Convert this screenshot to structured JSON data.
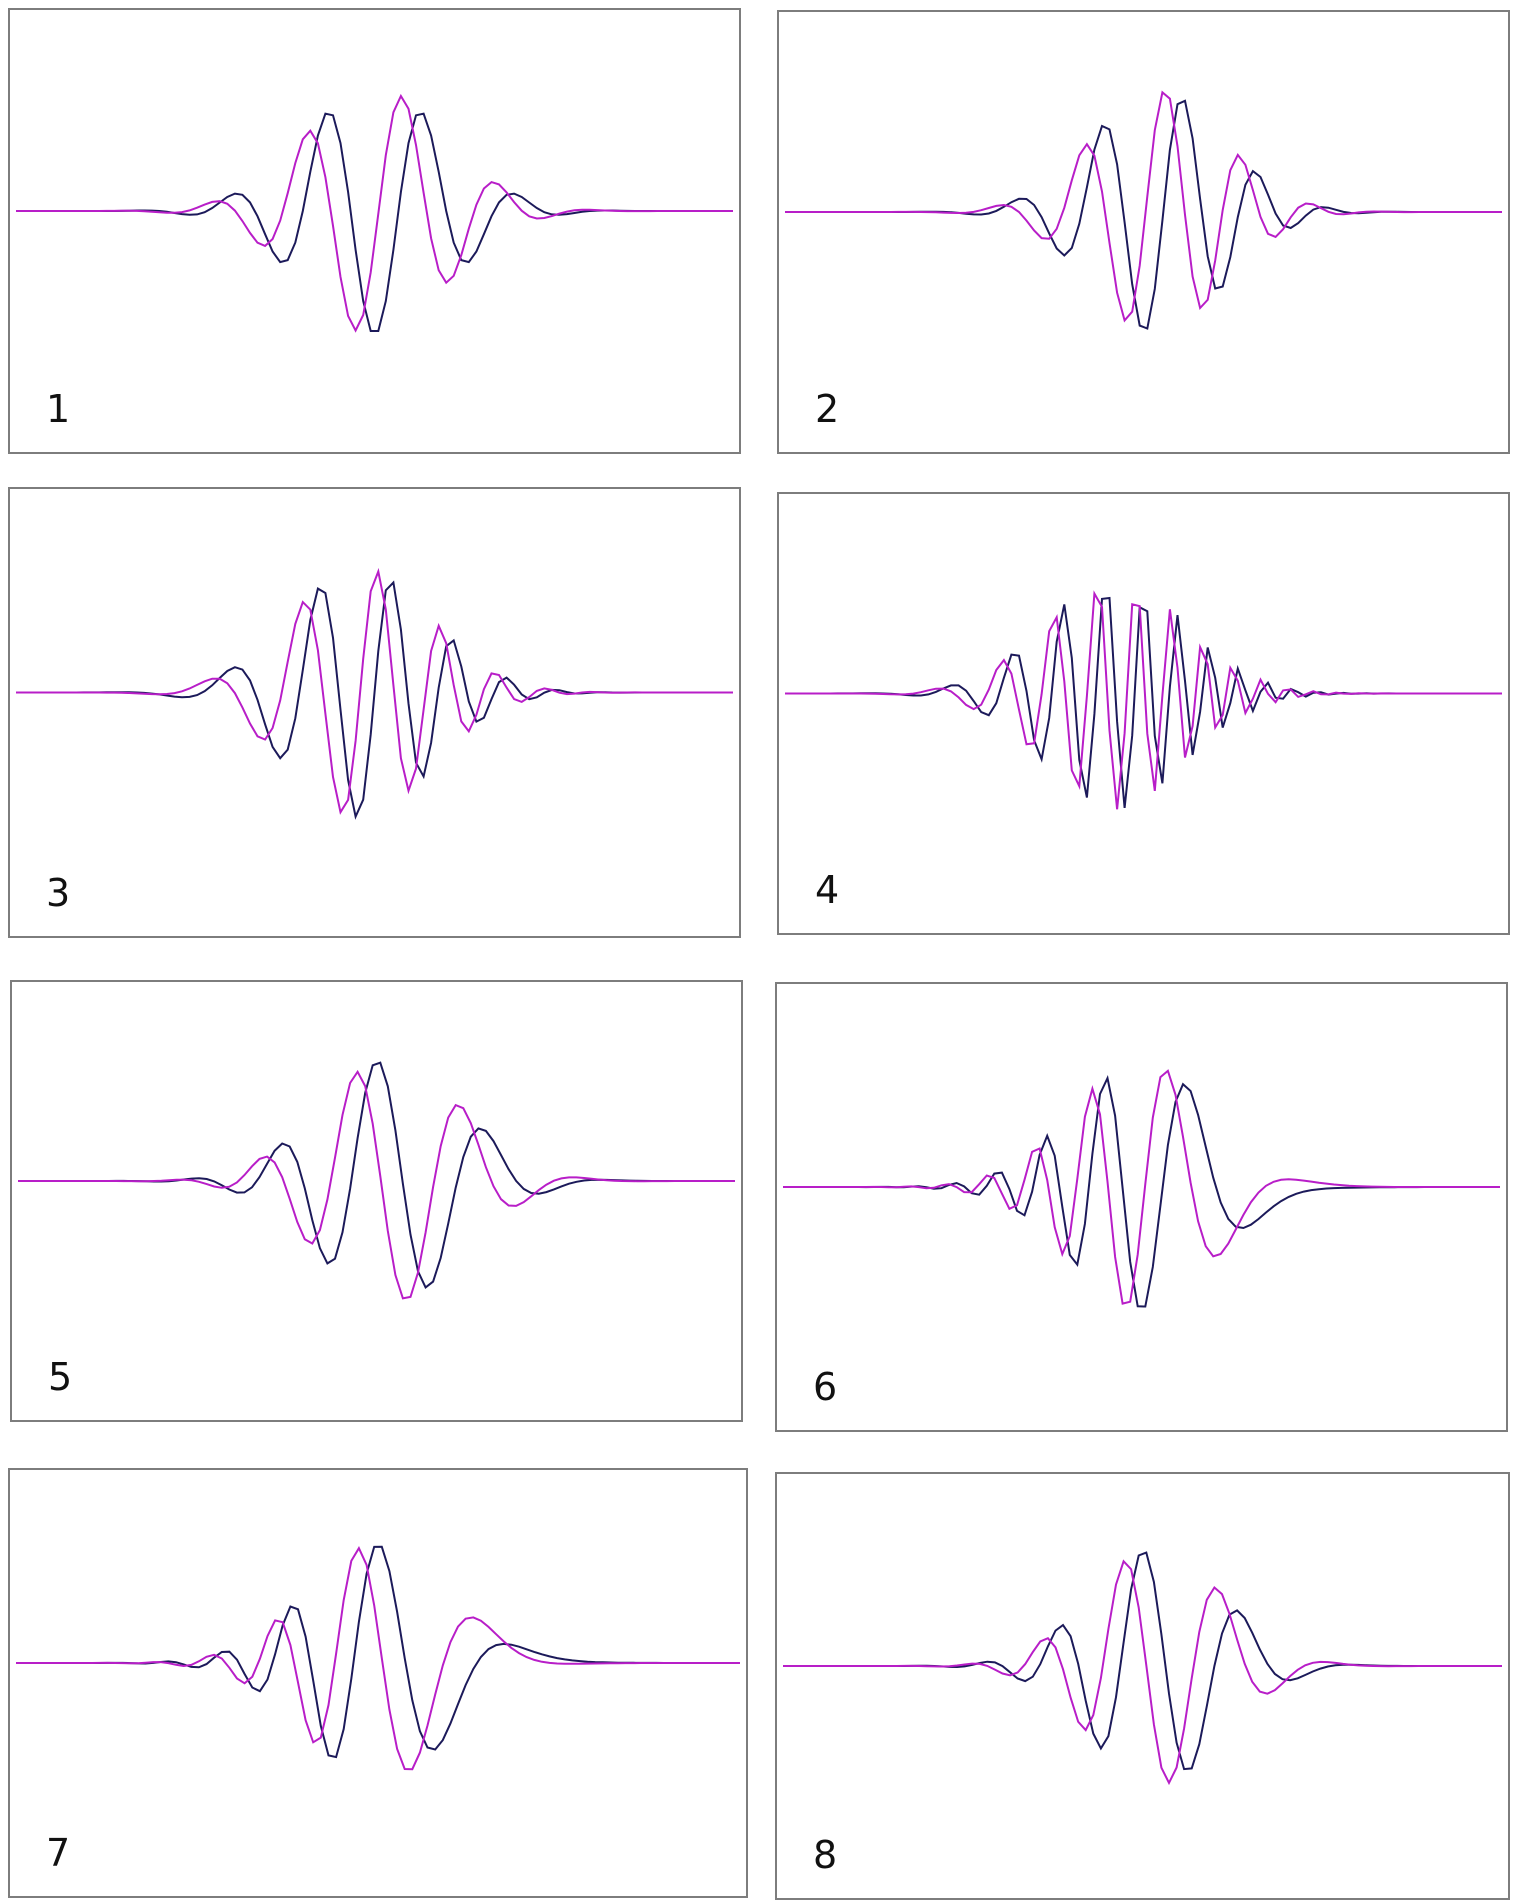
{
  "colors": {
    "dark": "#1c1a5a",
    "magenta": "#b81ec8",
    "border": "#7d7d7d"
  },
  "chart_data": [
    {
      "type": "line",
      "label": "1",
      "grid": false,
      "series": [
        {
          "color": "#1c1a5a",
          "env_center": 0.5,
          "env_width": 0.14,
          "freq0": 7.5,
          "chirp": 0,
          "phase": 0.0,
          "amplitude": 0.85
        },
        {
          "color": "#b81ec8",
          "env_center": 0.5,
          "env_width": 0.14,
          "freq0": 7.5,
          "chirp": 0,
          "phase": 1.3,
          "amplitude": 0.85
        }
      ]
    },
    {
      "type": "line",
      "label": "2",
      "grid": false,
      "series": [
        {
          "color": "#1c1a5a",
          "env_center": 0.52,
          "env_width": 0.13,
          "freq0": 6.0,
          "chirp": 6,
          "phase": 0.0,
          "amplitude": 0.85
        },
        {
          "color": "#b81ec8",
          "env_center": 0.52,
          "env_width": 0.13,
          "freq0": 6.0,
          "chirp": 6,
          "phase": 1.4,
          "amplitude": 0.85
        }
      ]
    },
    {
      "type": "line",
      "label": "3",
      "grid": false,
      "series": [
        {
          "color": "#1c1a5a",
          "env_center": 0.48,
          "env_width": 0.14,
          "freq0": 1.5,
          "chirp": 18,
          "phase": 0.0,
          "amplitude": 0.85
        },
        {
          "color": "#b81ec8",
          "env_center": 0.48,
          "env_width": 0.14,
          "freq0": 1.5,
          "chirp": 18,
          "phase": 1.3,
          "amplitude": 0.85
        }
      ]
    },
    {
      "type": "line",
      "label": "4",
      "grid": false,
      "series": [
        {
          "color": "#1c1a5a",
          "env_center": 0.46,
          "env_width": 0.14,
          "freq0": 1.0,
          "chirp": 38,
          "phase": 0.0,
          "amplitude": 0.8
        },
        {
          "color": "#b81ec8",
          "env_center": 0.46,
          "env_width": 0.14,
          "freq0": 1.0,
          "chirp": 38,
          "phase": 1.3,
          "amplitude": 0.8
        }
      ]
    },
    {
      "type": "line",
      "label": "5",
      "grid": false,
      "series": [
        {
          "color": "#1c1a5a",
          "env_center": 0.52,
          "env_width": 0.14,
          "freq0": 10.0,
          "chirp": -6,
          "phase": 0.0,
          "amplitude": 0.85
        },
        {
          "color": "#b81ec8",
          "env_center": 0.52,
          "env_width": 0.14,
          "freq0": 10.0,
          "chirp": -6,
          "phase": 1.3,
          "amplitude": 0.85
        }
      ]
    },
    {
      "type": "line",
      "label": "6",
      "grid": false,
      "series": [
        {
          "color": "#1c1a5a",
          "env_center": 0.5,
          "env_width": 0.14,
          "freq0": 26.0,
          "chirp": -34,
          "phase": 0.0,
          "amplitude": 0.85
        },
        {
          "color": "#b81ec8",
          "env_center": 0.5,
          "env_width": 0.14,
          "freq0": 26.0,
          "chirp": -34,
          "phase": 1.3,
          "amplitude": 0.85
        }
      ]
    },
    {
      "type": "line",
      "label": "7",
      "grid": false,
      "series": [
        {
          "color": "#1c1a5a",
          "env_center": 0.5,
          "env_width": 0.14,
          "freq0": 18.0,
          "chirp": -22,
          "phase": 0.0,
          "amplitude": 0.85
        },
        {
          "color": "#b81ec8",
          "env_center": 0.5,
          "env_width": 0.14,
          "freq0": 18.0,
          "chirp": -22,
          "phase": 1.3,
          "amplitude": 0.85
        }
      ]
    },
    {
      "type": "line",
      "label": "8",
      "grid": false,
      "series": [
        {
          "color": "#1c1a5a",
          "env_center": 0.52,
          "env_width": 0.13,
          "freq0": 13.0,
          "chirp": -10,
          "phase": 0.0,
          "amplitude": 0.85
        },
        {
          "color": "#b81ec8",
          "env_center": 0.52,
          "env_width": 0.13,
          "freq0": 13.0,
          "chirp": -10,
          "phase": 1.3,
          "amplitude": 0.85
        }
      ]
    }
  ]
}
